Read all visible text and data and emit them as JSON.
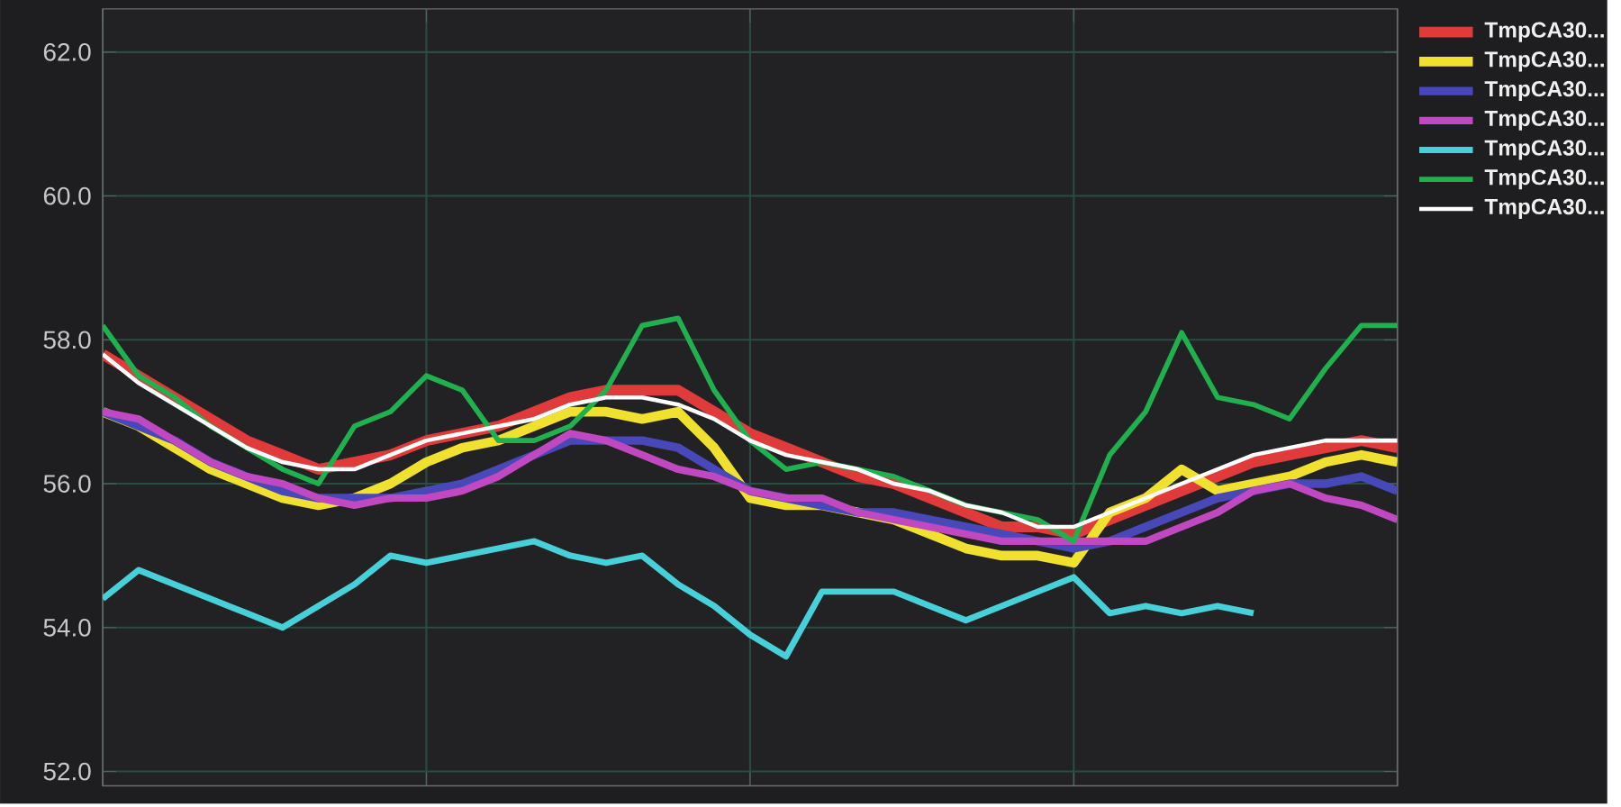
{
  "chart_data": {
    "type": "line",
    "categories": [
      null,
      null,
      null,
      null,
      null,
      null,
      null,
      null,
      null,
      null,
      null,
      null,
      null,
      null,
      null,
      null,
      null,
      null,
      null,
      null,
      null,
      null,
      null,
      null,
      null,
      null,
      null,
      null,
      null,
      null,
      null,
      null,
      null,
      null,
      null,
      null,
      null
    ],
    "ylim": [
      51.8,
      62.6
    ],
    "yticks": [
      {
        "value": 52,
        "label": "52.0"
      },
      {
        "value": 54,
        "label": "54.0"
      },
      {
        "value": 56,
        "label": "56.0"
      },
      {
        "value": 58,
        "label": "58.0"
      },
      {
        "value": 60,
        "label": "60.0"
      },
      {
        "value": 62,
        "label": "62.0"
      }
    ],
    "grid": true,
    "legend": "top right",
    "marker": "none",
    "line_style": "solid",
    "series": [
      {
        "name": "TmpCA30...",
        "color": "#e03a3a",
        "values": [
          57.8,
          57.5,
          57.2,
          56.9,
          56.6,
          56.4,
          56.2,
          56.3,
          56.4,
          56.6,
          56.7,
          56.8,
          57.0,
          57.2,
          57.3,
          57.3,
          57.3,
          57.0,
          56.7,
          56.5,
          56.3,
          56.1,
          56.0,
          55.8,
          55.6,
          55.4,
          55.4,
          55.3,
          55.5,
          55.7,
          55.9,
          56.1,
          56.3,
          56.4,
          56.5,
          56.6,
          56.5
        ]
      },
      {
        "name": "TmpCA30...",
        "color": "#f0e030",
        "values": [
          57.0,
          56.8,
          56.5,
          56.2,
          56.0,
          55.8,
          55.7,
          55.8,
          56.0,
          56.3,
          56.5,
          56.6,
          56.8,
          57.0,
          57.0,
          56.9,
          57.0,
          56.5,
          55.8,
          55.7,
          55.7,
          55.6,
          55.5,
          55.3,
          55.1,
          55.0,
          55.0,
          54.9,
          55.6,
          55.8,
          56.2,
          55.9,
          56.0,
          56.1,
          56.3,
          56.4,
          56.3
        ]
      },
      {
        "name": "TmpCA30...",
        "color": "#4848b8",
        "values": [
          57.0,
          56.8,
          56.6,
          56.3,
          56.1,
          55.9,
          55.8,
          55.8,
          55.8,
          55.9,
          56.0,
          56.2,
          56.4,
          56.6,
          56.6,
          56.6,
          56.5,
          56.2,
          55.9,
          55.8,
          55.7,
          55.6,
          55.6,
          55.5,
          55.4,
          55.3,
          55.2,
          55.1,
          55.2,
          55.4,
          55.6,
          55.8,
          55.9,
          56.0,
          56.0,
          56.1,
          55.9
        ]
      },
      {
        "name": "TmpCA30...",
        "color": "#c048c0",
        "values": [
          57.0,
          56.9,
          56.6,
          56.3,
          56.1,
          56.0,
          55.8,
          55.7,
          55.8,
          55.8,
          55.9,
          56.1,
          56.4,
          56.7,
          56.6,
          56.4,
          56.2,
          56.1,
          55.9,
          55.8,
          55.8,
          55.6,
          55.5,
          55.4,
          55.3,
          55.2,
          55.2,
          55.2,
          55.2,
          55.2,
          55.4,
          55.6,
          55.9,
          56.0,
          55.8,
          55.7,
          55.5
        ]
      },
      {
        "name": "TmpCA30...",
        "color": "#48d0d8",
        "values": [
          54.4,
          54.8,
          54.6,
          54.4,
          54.2,
          54.0,
          54.3,
          54.6,
          55.0,
          54.9,
          55.0,
          55.1,
          55.2,
          55.0,
          54.9,
          55.0,
          54.6,
          54.3,
          53.9,
          53.6,
          54.5,
          54.5,
          54.5,
          54.3,
          54.1,
          54.3,
          54.5,
          54.7,
          54.2,
          54.3,
          54.2,
          54.3,
          54.2,
          null,
          null,
          null,
          null
        ]
      },
      {
        "name": "TmpCA30...",
        "color": "#20b050",
        "values": [
          58.2,
          57.5,
          57.2,
          56.8,
          56.5,
          56.2,
          56.0,
          56.8,
          57.0,
          57.5,
          57.3,
          56.6,
          56.6,
          56.8,
          57.3,
          58.2,
          58.3,
          57.3,
          56.6,
          56.2,
          56.3,
          56.2,
          56.1,
          55.9,
          55.7,
          55.6,
          55.5,
          55.2,
          56.4,
          57.0,
          58.1,
          57.2,
          57.1,
          56.9,
          57.6,
          58.2,
          58.2
        ]
      },
      {
        "name": "TmpCA30...",
        "color": "#ffffff",
        "values": [
          57.8,
          57.4,
          57.1,
          56.8,
          56.5,
          56.3,
          56.2,
          56.2,
          56.4,
          56.6,
          56.7,
          56.8,
          56.9,
          57.1,
          57.2,
          57.2,
          57.1,
          56.9,
          56.6,
          56.4,
          56.3,
          56.2,
          56.0,
          55.9,
          55.7,
          55.6,
          55.4,
          55.4,
          55.6,
          55.8,
          56.0,
          56.2,
          56.4,
          56.5,
          56.6,
          56.6,
          56.6
        ]
      }
    ]
  }
}
